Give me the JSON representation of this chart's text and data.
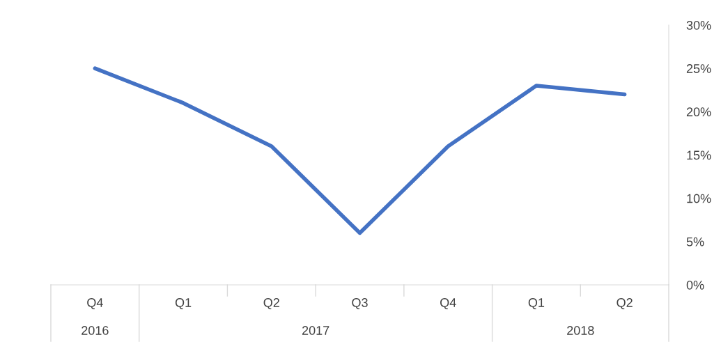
{
  "chart_data": {
    "type": "line",
    "categories": [
      "Q4",
      "Q1",
      "Q2",
      "Q3",
      "Q4",
      "Q1",
      "Q2"
    ],
    "series": [
      {
        "color": "#4472c4",
        "values": [
          25,
          21,
          16,
          6,
          16,
          23,
          22
        ]
      }
    ],
    "ylim": [
      0,
      30
    ],
    "yticks": [
      {
        "value": 0,
        "label": "0%"
      },
      {
        "value": 5,
        "label": "5%"
      },
      {
        "value": 10,
        "label": "10%"
      },
      {
        "value": 15,
        "label": "15%"
      },
      {
        "value": 20,
        "label": "20%"
      },
      {
        "value": 25,
        "label": "25%"
      },
      {
        "value": 30,
        "label": "30%"
      }
    ],
    "annotations": [
      "2016",
      "2017",
      "2018"
    ],
    "grid": false,
    "legend": false,
    "marker": "none",
    "line_style": "solid"
  }
}
